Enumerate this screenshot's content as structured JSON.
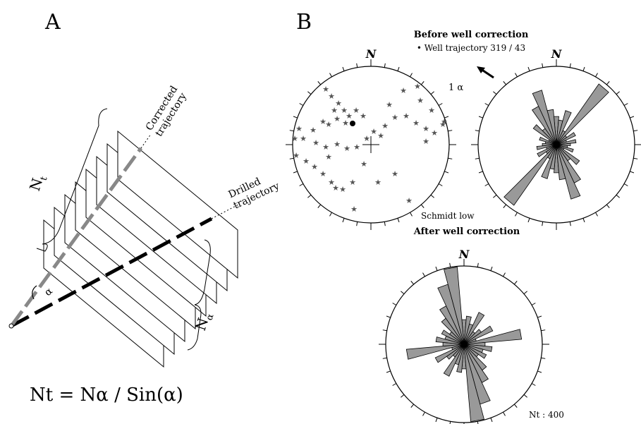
{
  "panel_a": {
    "letter": "A",
    "corrected_label_line1": "Corrected",
    "corrected_label_line2": "trajectory",
    "drilled_label_line1": "Drilled",
    "drilled_label_line2": "trajectory",
    "n_t_main": "N",
    "n_t_sub": "t",
    "n_alpha_main": "N",
    "n_alpha_sub": "α",
    "alpha_symbol": "α",
    "formula": "Nt = Nα / Sin(α)"
  },
  "panel_b": {
    "letter": "B",
    "before_title": "Before well correction",
    "well_trajectory": "• Well trajectory 319 / 43",
    "after_title": "After well correction",
    "stereonet": {
      "north": "N",
      "alpha_note": "1 α",
      "projection": "Schmidt low",
      "star_color": "#555555"
    },
    "rose_before": {
      "north": "N"
    },
    "rose_after": {
      "north": "N",
      "count": "Nt : 400"
    },
    "petal_color": "#999999"
  }
}
